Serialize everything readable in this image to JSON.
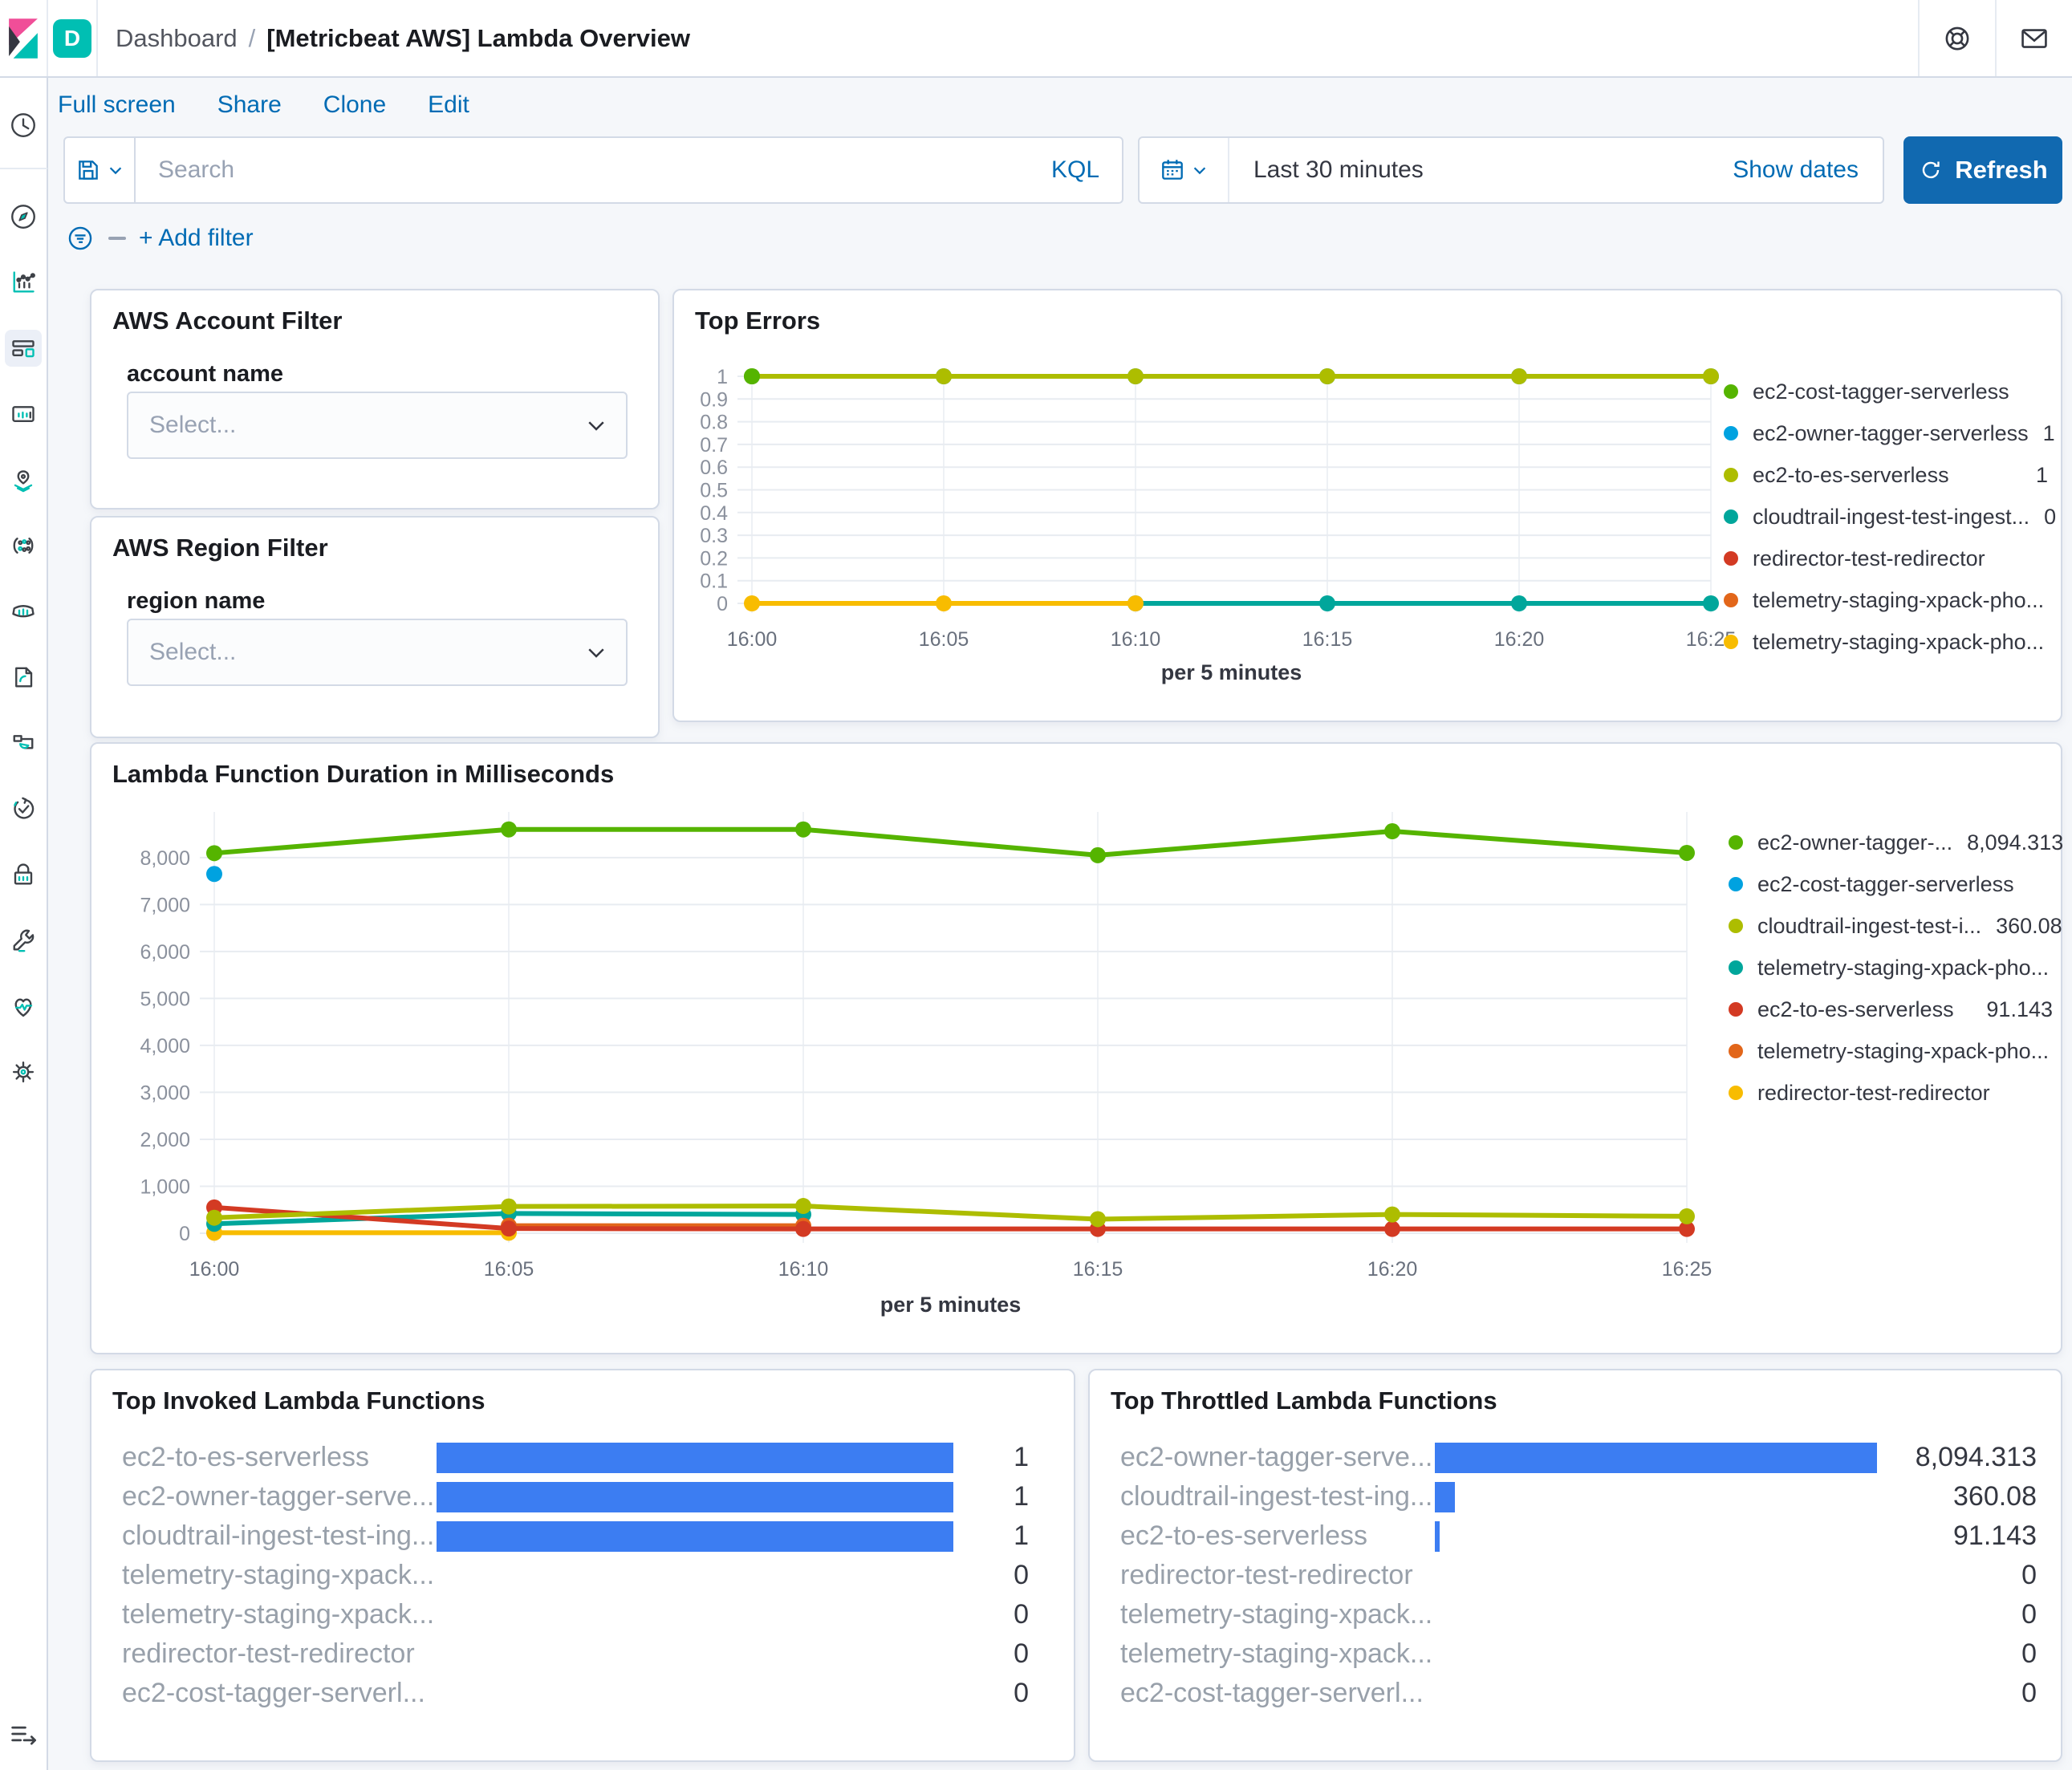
{
  "header": {
    "badge": "D",
    "breadcrumb": {
      "section": "Dashboard",
      "separator": "/",
      "page": "[Metricbeat AWS] Lambda Overview"
    },
    "action_icons": [
      {
        "id": "help",
        "glyph": "life-ring"
      },
      {
        "id": "mail",
        "glyph": "envelope"
      }
    ]
  },
  "sidebar": {
    "items": [
      {
        "id": "recents",
        "icon": "clock"
      },
      {
        "id": "divider"
      },
      {
        "id": "discover",
        "icon": "compass"
      },
      {
        "id": "visualize",
        "icon": "chart"
      },
      {
        "id": "dashboard",
        "icon": "dashboard",
        "active": true
      },
      {
        "id": "canvas",
        "icon": "canvas"
      },
      {
        "id": "maps",
        "icon": "map-pin"
      },
      {
        "id": "machine-learning",
        "icon": "ml-dots"
      },
      {
        "id": "metrics",
        "icon": "metrics"
      },
      {
        "id": "logs",
        "icon": "logs"
      },
      {
        "id": "apm",
        "icon": "apm"
      },
      {
        "id": "uptime",
        "icon": "uptime"
      },
      {
        "id": "security",
        "icon": "lock"
      },
      {
        "id": "dev-tools",
        "icon": "wrench"
      },
      {
        "id": "stack-monitoring",
        "icon": "heartbeat"
      },
      {
        "id": "management",
        "icon": "gear"
      }
    ],
    "collapse_icon": "collapse-menu"
  },
  "toolbar": {
    "menu": [
      "Full screen",
      "Share",
      "Clone",
      "Edit"
    ],
    "search_placeholder": "Search",
    "kql_label": "KQL",
    "time_range": "Last 30 minutes",
    "show_dates_label": "Show dates",
    "refresh_label": "Refresh",
    "add_filter_label": "+ Add filter"
  },
  "panels": {
    "account_filter": {
      "title": "AWS Account Filter",
      "field_label": "account name",
      "select_placeholder": "Select..."
    },
    "region_filter": {
      "title": "AWS Region Filter",
      "field_label": "region name",
      "select_placeholder": "Select..."
    }
  },
  "colors": {
    "link_blue": "#006bb4",
    "refresh_blue": "#1169b0",
    "badge_teal": "#00bfb3",
    "logo_pink": "#f04e98",
    "logo_dark": "#343741",
    "bar_blue": "#3c7df2",
    "grid_h": "#e8ecf1",
    "grid_v": "#eef1f5",
    "tick_text": "#8b919d",
    "x_text": "#69707d"
  },
  "chart_data": [
    {
      "type": "line",
      "title": "Top Errors",
      "x": [
        "16:00",
        "16:05",
        "16:10",
        "16:15",
        "16:20",
        "16:25"
      ],
      "xlabel": "per 5 minutes",
      "ylim": [
        0,
        1
      ],
      "yticks": [
        {
          "v": 0,
          "label": "0"
        },
        {
          "v": 0.1,
          "label": "0.1"
        },
        {
          "v": 0.2,
          "label": "0.2"
        },
        {
          "v": 0.3,
          "label": "0.3"
        },
        {
          "v": 0.4,
          "label": "0.4"
        },
        {
          "v": 0.5,
          "label": "0.5"
        },
        {
          "v": 0.6,
          "label": "0.6"
        },
        {
          "v": 0.7,
          "label": "0.7"
        },
        {
          "v": 0.8,
          "label": "0.8"
        },
        {
          "v": 0.9,
          "label": "0.9"
        },
        {
          "v": 1,
          "label": "1"
        }
      ],
      "grid": true,
      "legend_position": "right",
      "series": [
        {
          "name": "ec2-owner-tagger-serverless",
          "color": "#00a2e0",
          "values": [
            1,
            1,
            1,
            1,
            1,
            1
          ]
        },
        {
          "name": "ec2-to-es-serverless",
          "color": "#adbd00",
          "values": [
            1,
            1,
            1,
            1,
            1,
            1
          ]
        },
        {
          "name": "cloudtrail-ingest-test-ingest...",
          "color": "#00a69b",
          "values": [
            null,
            null,
            0,
            0,
            0,
            0
          ]
        },
        {
          "name": "telemetry-staging-xpack-pho...",
          "color": "#f8bc00",
          "values": [
            0,
            0,
            0,
            null,
            null,
            null
          ]
        },
        {
          "name": "redirector-test-redirector",
          "color": "#d33a23",
          "values": [
            null,
            null,
            null,
            null,
            null,
            null
          ]
        },
        {
          "name": "telemetry-staging-xpack-pho...",
          "color": "#e2661a",
          "values": [
            null,
            null,
            null,
            null,
            null,
            null
          ]
        },
        {
          "name": "ec2-cost-tagger-serverless",
          "color": "#55b400",
          "values": [
            1,
            null,
            null,
            null,
            null,
            null
          ]
        }
      ],
      "legend": [
        {
          "name": "ec2-cost-tagger-serverless",
          "color": "#55b400",
          "value": ""
        },
        {
          "name": "ec2-owner-tagger-serverless",
          "color": "#00a2e0",
          "value": "1"
        },
        {
          "name": "ec2-to-es-serverless",
          "color": "#adbd00",
          "value": "1"
        },
        {
          "name": "cloudtrail-ingest-test-ingest...",
          "color": "#00a69b",
          "value": "0"
        },
        {
          "name": "redirector-test-redirector",
          "color": "#d33a23",
          "value": ""
        },
        {
          "name": "telemetry-staging-xpack-pho...",
          "color": "#e2661a",
          "value": ""
        },
        {
          "name": "telemetry-staging-xpack-pho...",
          "color": "#f8bc00",
          "value": ""
        }
      ]
    },
    {
      "type": "line",
      "title": "Lambda Function Duration in Milliseconds",
      "x": [
        "16:00",
        "16:05",
        "16:10",
        "16:15",
        "16:20",
        "16:25"
      ],
      "xlabel": "per 5 minutes",
      "ylim": [
        0,
        8800
      ],
      "yticks": [
        {
          "v": 0,
          "label": "0"
        },
        {
          "v": 1000,
          "label": "1,000"
        },
        {
          "v": 2000,
          "label": "2,000"
        },
        {
          "v": 3000,
          "label": "3,000"
        },
        {
          "v": 4000,
          "label": "4,000"
        },
        {
          "v": 5000,
          "label": "5,000"
        },
        {
          "v": 6000,
          "label": "6,000"
        },
        {
          "v": 7000,
          "label": "7,000"
        },
        {
          "v": 8000,
          "label": "8,000"
        }
      ],
      "grid": true,
      "legend_position": "right",
      "series": [
        {
          "name": "redirector-test-redirector",
          "color": "#f8bc00",
          "values": [
            10,
            10,
            null,
            null,
            null,
            null
          ]
        },
        {
          "name": "telemetry-staging-xpack-pho...",
          "color": "#00a69b",
          "values": [
            200,
            420,
            400,
            null,
            null,
            null
          ]
        },
        {
          "name": "telemetry-staging-xpack-pho...",
          "color": "#e2661a",
          "values": [
            null,
            160,
            160,
            null,
            null,
            null
          ]
        },
        {
          "name": "ec2-to-es-serverless",
          "color": "#d33a23",
          "values": [
            550,
            100,
            91,
            91,
            91,
            91
          ]
        },
        {
          "name": "cloudtrail-ingest-test-i...",
          "color": "#adbd00",
          "values": [
            330,
            570,
            580,
            300,
            400,
            360
          ]
        },
        {
          "name": "ec2-owner-tagger-...",
          "color": "#55b400",
          "values": [
            8094,
            8600,
            8600,
            8050,
            8560,
            8100
          ]
        },
        {
          "name": "ec2-cost-tagger-serverless",
          "color": "#00a2e0",
          "values": [
            7650,
            null,
            null,
            null,
            null,
            null
          ]
        }
      ],
      "legend": [
        {
          "name": "ec2-owner-tagger-...",
          "color": "#55b400",
          "value": "8,094.313"
        },
        {
          "name": "ec2-cost-tagger-serverless",
          "color": "#00a2e0",
          "value": ""
        },
        {
          "name": "cloudtrail-ingest-test-i...",
          "color": "#adbd00",
          "value": "360.08"
        },
        {
          "name": "telemetry-staging-xpack-pho...",
          "color": "#00a69b",
          "value": ""
        },
        {
          "name": "ec2-to-es-serverless",
          "color": "#d33a23",
          "value": "91.143"
        },
        {
          "name": "telemetry-staging-xpack-pho...",
          "color": "#e2661a",
          "value": ""
        },
        {
          "name": "redirector-test-redirector",
          "color": "#f8bc00",
          "value": ""
        }
      ]
    },
    {
      "type": "bar",
      "orientation": "horizontal",
      "title": "Top Invoked Lambda Functions",
      "categories": [
        "ec2-to-es-serverless",
        "ec2-owner-tagger-serve...",
        "cloudtrail-ingest-test-ing...",
        "telemetry-staging-xpack...",
        "telemetry-staging-xpack...",
        "redirector-test-redirector",
        "ec2-cost-tagger-serverl..."
      ],
      "values": [
        1,
        1,
        1,
        0,
        0,
        0,
        0
      ],
      "display_values": [
        "1",
        "1",
        "1",
        "0",
        "0",
        "0",
        "0"
      ],
      "max": 1,
      "bar_color": "#3c7df2"
    },
    {
      "type": "bar",
      "orientation": "horizontal",
      "title": "Top Throttled Lambda Functions",
      "categories": [
        "ec2-owner-tagger-serve...",
        "cloudtrail-ingest-test-ing...",
        "ec2-to-es-serverless",
        "redirector-test-redirector",
        "telemetry-staging-xpack...",
        "telemetry-staging-xpack...",
        "ec2-cost-tagger-serverl..."
      ],
      "values": [
        8094.313,
        360.08,
        91.143,
        0,
        0,
        0,
        0
      ],
      "display_values": [
        "8,094.313",
        "360.08",
        "91.143",
        "0",
        "0",
        "0",
        "0"
      ],
      "max": 8094.313,
      "bar_color": "#3c7df2"
    }
  ]
}
